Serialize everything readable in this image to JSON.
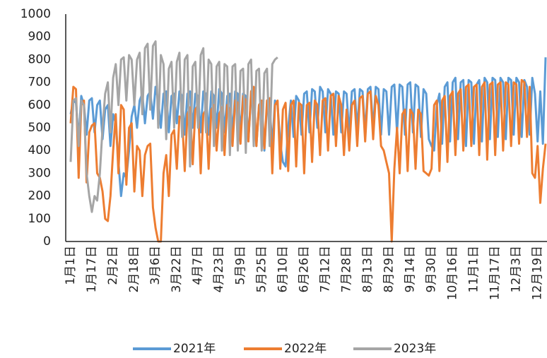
{
  "chart_data": {
    "type": "line",
    "categories": [
      "1月1日",
      null,
      null,
      null,
      null,
      null,
      null,
      null,
      "1月17日",
      null,
      null,
      null,
      null,
      null,
      null,
      null,
      "2月2日",
      null,
      null,
      null,
      null,
      null,
      null,
      null,
      "2月18日",
      null,
      null,
      null,
      null,
      null,
      null,
      null,
      "3月6日",
      null,
      null,
      null,
      null,
      null,
      null,
      null,
      "3月22日",
      null,
      null,
      null,
      null,
      null,
      null,
      null,
      "4月7日",
      null,
      null,
      null,
      null,
      null,
      null,
      null,
      "4月23日",
      null,
      null,
      null,
      null,
      null,
      null,
      null,
      "5月9日",
      null,
      null,
      null,
      null,
      null,
      null,
      null,
      "5月25日",
      null,
      null,
      null,
      null,
      null,
      null,
      null,
      "6月10日",
      null,
      null,
      null,
      null,
      null,
      null,
      null,
      "6月26日",
      null,
      null,
      null,
      null,
      null,
      null,
      null,
      "7月12日",
      null,
      null,
      null,
      null,
      null,
      null,
      null,
      "7月28日",
      null,
      null,
      null,
      null,
      null,
      null,
      null,
      "8月13日",
      null,
      null,
      null,
      null,
      null,
      null,
      null,
      "8月29日",
      null,
      null,
      null,
      null,
      null,
      null,
      null,
      "9月14日",
      null,
      null,
      null,
      null,
      null,
      null,
      null,
      "9月30日",
      null,
      null,
      null,
      null,
      null,
      null,
      null,
      "10月16日",
      null,
      null,
      null,
      null,
      null,
      null,
      null,
      "11月1日",
      null,
      null,
      null,
      null,
      null,
      null,
      null,
      "11月17日",
      null,
      null,
      null,
      null,
      null,
      null,
      null,
      "12月3日",
      null,
      null,
      null,
      null,
      null,
      null,
      null,
      "12月19日",
      null,
      null,
      null
    ],
    "series": [
      {
        "name": "2021年",
        "color": "#5b9bd5",
        "values": [
          560,
          620,
          610,
          450,
          640,
          600,
          470,
          620,
          630,
          480,
          600,
          620,
          450,
          580,
          600,
          420,
          560,
          520,
          350,
          200,
          300,
          280,
          400,
          550,
          600,
          500,
          620,
          650,
          520,
          640,
          660,
          540,
          680,
          620,
          500,
          650,
          660,
          480,
          640,
          650,
          520,
          660,
          640,
          470,
          650,
          660,
          500,
          650,
          640,
          480,
          660,
          650,
          470,
          660,
          640,
          500,
          670,
          650,
          480,
          640,
          650,
          470,
          660,
          650,
          480,
          650,
          640,
          450,
          640,
          620,
          420,
          600,
          590,
          400,
          600,
          590,
          420,
          620,
          600,
          430,
          350,
          330,
          500,
          620,
          460,
          640,
          620,
          470,
          650,
          660,
          480,
          670,
          660,
          500,
          680,
          660,
          480,
          670,
          650,
          470,
          660,
          650,
          480,
          660,
          650,
          470,
          660,
          670,
          490,
          670,
          660,
          480,
          670,
          680,
          490,
          680,
          670,
          470,
          670,
          660,
          470,
          680,
          690,
          480,
          690,
          680,
          470,
          690,
          700,
          480,
          690,
          680,
          460,
          670,
          650,
          450,
          420,
          400,
          600,
          650,
          430,
          680,
          700,
          440,
          700,
          720,
          450,
          700,
          710,
          420,
          710,
          700,
          430,
          690,
          710,
          440,
          720,
          700,
          450,
          720,
          710,
          460,
          720,
          700,
          450,
          720,
          710,
          470,
          720,
          700,
          460,
          710,
          680,
          470,
          720,
          650,
          440,
          660,
          430,
          810
        ]
      },
      {
        "name": "2022年",
        "color": "#ed7d31",
        "values": [
          520,
          680,
          670,
          280,
          600,
          620,
          260,
          480,
          510,
          520,
          300,
          280,
          220,
          100,
          90,
          200,
          400,
          560,
          300,
          600,
          580,
          250,
          500,
          520,
          220,
          420,
          400,
          200,
          380,
          420,
          430,
          150,
          60,
          0,
          0,
          300,
          380,
          200,
          470,
          490,
          320,
          550,
          540,
          310,
          560,
          590,
          340,
          580,
          600,
          300,
          560,
          580,
          320,
          580,
          600,
          400,
          560,
          590,
          380,
          600,
          580,
          420,
          620,
          610,
          430,
          640,
          620,
          440,
          660,
          680,
          420,
          600,
          620,
          410,
          620,
          630,
          300,
          600,
          620,
          320,
          580,
          610,
          310,
          600,
          620,
          330,
          610,
          600,
          300,
          600,
          610,
          350,
          620,
          600,
          380,
          620,
          630,
          400,
          640,
          650,
          420,
          640,
          600,
          380,
          580,
          400,
          600,
          620,
          420,
          630,
          640,
          440,
          650,
          660,
          450,
          640,
          600,
          420,
          400,
          350,
          300,
          0,
          320,
          500,
          300,
          560,
          580,
          310,
          580,
          560,
          320,
          580,
          560,
          310,
          300,
          290,
          320,
          600,
          620,
          310,
          620,
          640,
          350,
          640,
          660,
          380,
          650,
          670,
          400,
          680,
          690,
          420,
          680,
          690,
          380,
          680,
          700,
          360,
          690,
          700,
          380,
          690,
          700,
          400,
          700,
          690,
          420,
          700,
          690,
          430,
          710,
          700,
          460,
          680,
          300,
          280,
          420,
          170,
          320,
          430
        ]
      },
      {
        "name": "2023年",
        "color": "#a5a5a5",
        "values": [
          350,
          620,
          630,
          420,
          620,
          600,
          300,
          200,
          130,
          200,
          180,
          300,
          500,
          650,
          700,
          480,
          720,
          780,
          600,
          800,
          810,
          620,
          820,
          800,
          600,
          800,
          830,
          560,
          850,
          870,
          580,
          860,
          880,
          500,
          820,
          780,
          450,
          760,
          790,
          500,
          790,
          830,
          460,
          800,
          820,
          330,
          770,
          790,
          500,
          820,
          850,
          480,
          800,
          780,
          420,
          770,
          790,
          400,
          780,
          770,
          380,
          770,
          780,
          400,
          750,
          760,
          390,
          780,
          800,
          420,
          750,
          760,
          400,
          740,
          760,
          420,
          780,
          800,
          810,
          null,
          null,
          null,
          null,
          null,
          null,
          null,
          null,
          null,
          null,
          null,
          null,
          null,
          null,
          null,
          null,
          null,
          null,
          null,
          null,
          null,
          null,
          null,
          null,
          null,
          null,
          null,
          null,
          null,
          null,
          null,
          null,
          null,
          null,
          null,
          null,
          null,
          null,
          null,
          null,
          null,
          null,
          null,
          null,
          null,
          null,
          null,
          null,
          null,
          null,
          null,
          null,
          null,
          null,
          null,
          null,
          null,
          null,
          null,
          null,
          null,
          null,
          null,
          null,
          null,
          null,
          null,
          null,
          null,
          null,
          null,
          null,
          null,
          null,
          null,
          null,
          null,
          null,
          null,
          null,
          null,
          null,
          null,
          null,
          null,
          null,
          null,
          null,
          null,
          null,
          null,
          null,
          null,
          null,
          null,
          null,
          null,
          null,
          null,
          null,
          null
        ]
      }
    ],
    "ylim": [
      0,
      1000
    ],
    "yticks": [
      0,
      100,
      200,
      300,
      400,
      500,
      600,
      700,
      800,
      900,
      1000
    ],
    "grid": false,
    "legend": "bottom"
  }
}
